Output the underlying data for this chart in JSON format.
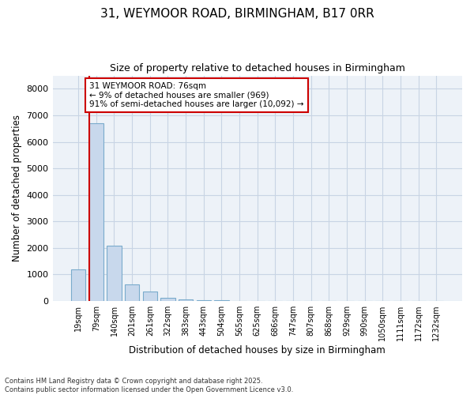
{
  "title_line1": "31, WEYMOOR ROAD, BIRMINGHAM, B17 0RR",
  "title_line2": "Size of property relative to detached houses in Birmingham",
  "xlabel": "Distribution of detached houses by size in Birmingham",
  "ylabel": "Number of detached properties",
  "categories": [
    "19sqm",
    "79sqm",
    "140sqm",
    "201sqm",
    "261sqm",
    "322sqm",
    "383sqm",
    "443sqm",
    "504sqm",
    "565sqm",
    "625sqm",
    "686sqm",
    "747sqm",
    "807sqm",
    "868sqm",
    "929sqm",
    "990sqm",
    "1050sqm",
    "1111sqm",
    "1172sqm",
    "1232sqm"
  ],
  "values": [
    1200,
    6700,
    2100,
    620,
    350,
    130,
    70,
    40,
    20,
    8,
    3,
    0,
    0,
    0,
    0,
    0,
    0,
    0,
    0,
    0,
    0
  ],
  "bar_color": "#c8d8ec",
  "bar_edge_color": "#7aabcc",
  "grid_color": "#c8d4e4",
  "background_color": "#edf2f8",
  "vline_color": "#cc0000",
  "annotation_text": "31 WEYMOOR ROAD: 76sqm\n← 9% of detached houses are smaller (969)\n91% of semi-detached houses are larger (10,092) →",
  "annotation_box_color": "white",
  "annotation_box_edge": "#cc0000",
  "ylim": [
    0,
    8500
  ],
  "yticks": [
    0,
    1000,
    2000,
    3000,
    4000,
    5000,
    6000,
    7000,
    8000
  ],
  "footer_line1": "Contains HM Land Registry data © Crown copyright and database right 2025.",
  "footer_line2": "Contains public sector information licensed under the Open Government Licence v3.0."
}
